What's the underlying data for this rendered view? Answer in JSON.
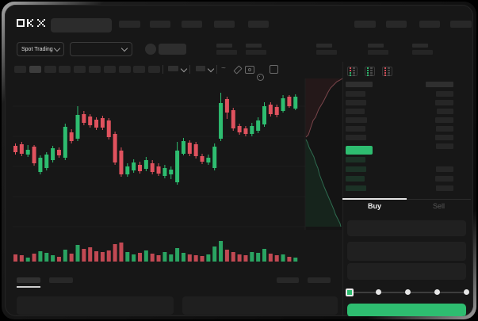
{
  "brand": {
    "name": "OKX"
  },
  "topnav": {
    "left_placeholder_count": 5,
    "right_placeholder_count": 4
  },
  "subheader": {
    "market_selector_label": "Spot Trading",
    "stat_group_count": 5
  },
  "toolbar": {
    "timeframe_count": 10,
    "active_timeframe_index": 1,
    "icons": [
      "indicator-dropdown",
      "style-dropdown",
      "wave-line",
      "draw",
      "camera",
      "settings",
      "fullscreen"
    ]
  },
  "colors": {
    "up_green": "#2ebd70",
    "down_red": "#e0525e",
    "last_price_green": "#2ebd70",
    "buy_button_green": "#2ebd70",
    "bid_row_green": "#1c3226",
    "placeholder_gray": "#282828"
  },
  "chart_data": {
    "type": "candlestick",
    "title": "",
    "xlabel": "",
    "ylabel": "",
    "ylim": [
      25,
      95
    ],
    "grid": true,
    "gridline_values": [
      79,
      60,
      41,
      22,
      3
    ],
    "candles": [
      [
        54,
        55.5,
        48.5,
        50
      ],
      [
        55,
        56.5,
        47.5,
        49
      ],
      [
        48.5,
        54.5,
        47,
        51.5
      ],
      [
        53.5,
        54.5,
        41.5,
        43
      ],
      [
        37.5,
        48,
        36,
        46.5
      ],
      [
        40,
        50,
        38.5,
        48.5
      ],
      [
        45,
        54,
        43.5,
        52.5
      ],
      [
        51.5,
        53,
        46.5,
        48
      ],
      [
        46.5,
        68,
        45,
        66
      ],
      [
        62.5,
        64.5,
        55.5,
        57
      ],
      [
        58.5,
        79,
        57,
        73.5
      ],
      [
        74,
        76,
        67,
        68.5
      ],
      [
        72.5,
        74,
        65.5,
        67
      ],
      [
        70.5,
        72,
        64,
        65.5
      ],
      [
        71.5,
        73,
        64,
        65.5
      ],
      [
        70,
        71.5,
        58,
        59.5
      ],
      [
        61.5,
        63,
        42,
        43.5
      ],
      [
        51,
        53,
        34.5,
        36
      ],
      [
        36,
        43,
        34.5,
        41
      ],
      [
        38.5,
        45.5,
        37,
        43.5
      ],
      [
        42,
        44,
        36.5,
        38
      ],
      [
        39.5,
        47,
        38,
        45
      ],
      [
        43,
        45,
        36,
        37.5
      ],
      [
        41,
        43,
        35,
        36.5
      ],
      [
        35,
        42,
        33.5,
        40
      ],
      [
        36,
        41,
        33,
        39
      ],
      [
        31,
        56.5,
        29.5,
        51
      ],
      [
        49,
        59,
        48,
        57
      ],
      [
        56,
        57.5,
        47.5,
        49
      ],
      [
        55,
        56.5,
        46,
        47.5
      ],
      [
        47.5,
        49,
        42.5,
        44
      ],
      [
        43.5,
        48.5,
        42,
        46.5
      ],
      [
        40,
        55.5,
        38.5,
        53.5
      ],
      [
        58.5,
        87.5,
        57,
        81
      ],
      [
        83.5,
        85,
        71,
        75
      ],
      [
        76.5,
        78,
        63.5,
        65
      ],
      [
        66.5,
        68,
        61,
        62.5
      ],
      [
        65,
        66.5,
        60,
        61.5
      ],
      [
        61.5,
        68.5,
        60,
        66.5
      ],
      [
        63.5,
        72,
        62,
        70
      ],
      [
        67.5,
        81.5,
        66,
        79
      ],
      [
        80,
        81.5,
        72.5,
        74
      ],
      [
        78.5,
        80,
        72,
        73.5
      ],
      [
        76,
        86,
        75,
        84
      ],
      [
        85,
        86,
        78,
        79
      ],
      [
        77.5,
        86.5,
        76.5,
        85
      ]
    ],
    "volumes": [
      9,
      8,
      5,
      10,
      13,
      11,
      8,
      6,
      15,
      10,
      21,
      16,
      18,
      13,
      12,
      14,
      22,
      24,
      12,
      9,
      11,
      14,
      10,
      8,
      12,
      9,
      17,
      11,
      9,
      8,
      7,
      9,
      19,
      26,
      15,
      12,
      9,
      8,
      12,
      11,
      16,
      10,
      8,
      9,
      6,
      5
    ],
    "depth": {
      "ask_curve": [
        [
          384,
          171
        ],
        [
          387,
          168
        ],
        [
          389,
          162
        ],
        [
          391,
          156
        ],
        [
          393,
          150
        ],
        [
          396,
          146
        ],
        [
          398,
          141
        ],
        [
          400,
          136
        ],
        [
          403,
          131
        ],
        [
          406,
          126
        ],
        [
          409,
          120
        ],
        [
          412,
          114
        ],
        [
          415,
          109
        ],
        [
          419,
          105
        ],
        [
          423,
          101
        ],
        [
          427,
          99
        ],
        [
          430,
          97
        ]
      ],
      "bid_curve": [
        [
          384,
          174
        ],
        [
          386,
          178
        ],
        [
          388,
          184
        ],
        [
          391,
          190
        ],
        [
          394,
          196
        ],
        [
          396,
          203
        ],
        [
          399,
          210
        ],
        [
          401,
          218
        ],
        [
          404,
          226
        ],
        [
          407,
          234
        ],
        [
          410,
          241
        ],
        [
          413,
          248
        ],
        [
          416,
          255
        ],
        [
          419,
          262
        ],
        [
          421,
          268
        ],
        [
          424,
          274
        ],
        [
          427,
          280
        ],
        [
          428,
          284
        ]
      ]
    }
  },
  "orderbook": {
    "view_toggles": [
      "combined-book",
      "bids-only",
      "asks-only"
    ],
    "asks": [
      {
        "l": 25,
        "r": 22
      },
      {
        "l": 26,
        "r": 23
      },
      {
        "l": 24,
        "r": 21
      },
      {
        "l": 27,
        "r": 23
      },
      {
        "l": 25,
        "r": 22
      },
      {
        "l": 26,
        "r": 23
      },
      {
        "l": 0,
        "r": 22
      }
    ],
    "last_price_bar_w": 34,
    "bids": [
      {
        "l": 25,
        "r": 0
      },
      {
        "l": 26,
        "r": 22
      },
      {
        "l": 24,
        "r": 23
      },
      {
        "l": 26,
        "r": 22
      }
    ]
  },
  "trade_panel": {
    "buy_tab_label": "Buy",
    "sell_tab_label": "Sell",
    "active_tab": "Buy",
    "slider_stops": 5,
    "slider_position_index": 0
  }
}
